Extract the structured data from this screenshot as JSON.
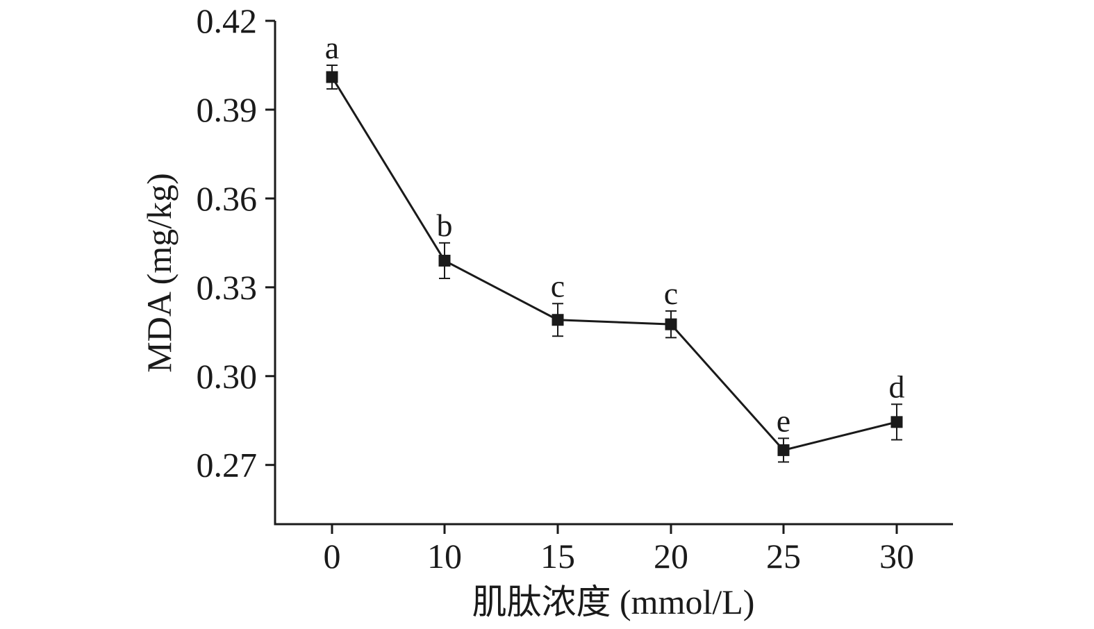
{
  "chart_data": {
    "type": "line",
    "title": "",
    "xlabel": "肌肽浓度 (mmol/L)",
    "ylabel": "MDA (mg/kg)",
    "categories": [
      "0",
      "10",
      "15",
      "20",
      "25",
      "30"
    ],
    "yticks": [
      "0.27",
      "0.30",
      "0.33",
      "0.36",
      "0.39",
      "0.42"
    ],
    "ylim": [
      0.25,
      0.42
    ],
    "grid": false,
    "legend": "none",
    "series": [
      {
        "values": [
          0.401,
          0.339,
          0.319,
          0.3175,
          0.275,
          0.2845
        ],
        "errors": [
          0.004,
          0.006,
          0.0055,
          0.0045,
          0.004,
          0.006
        ],
        "labels": [
          "a",
          "b",
          "c",
          "c",
          "e",
          "d"
        ],
        "color": "#1a1a1a"
      }
    ]
  }
}
